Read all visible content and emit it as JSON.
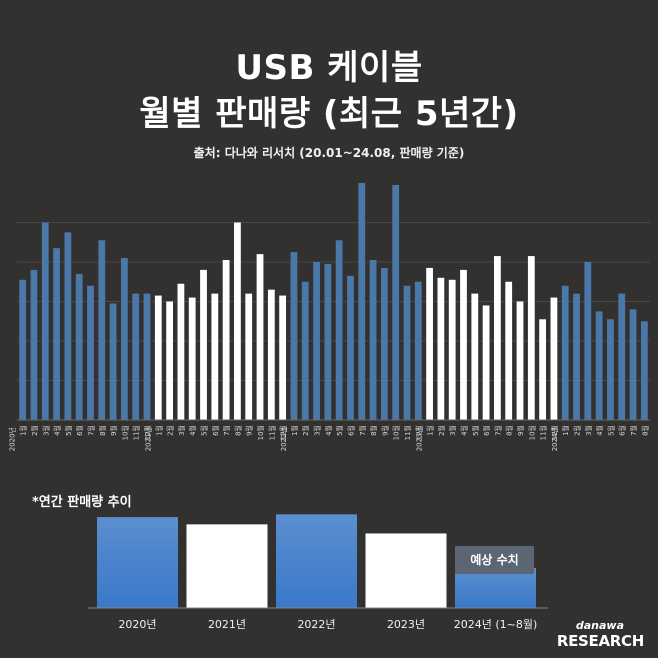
{
  "header": {
    "title_line1": "USB 케이블",
    "title_line2": "월별 판매량 (최근 5년간)",
    "source": "출처: 다나와 리서치 (20.01~24.08, 판매량 기준)"
  },
  "colors": {
    "background": "#333130",
    "blue": "#4a78a8",
    "white": "#ffffff",
    "gridline": "#4a4846",
    "forecast_badge": "#5a6673"
  },
  "chart_data": [
    {
      "type": "bar",
      "title": "USB 케이블 월별 판매량 (최근 5년간)",
      "xlabel": "",
      "ylabel": "",
      "ylim": [
        0,
        120
      ],
      "grid": true,
      "series": [
        {
          "name": "2020년",
          "year_label": "2020년",
          "color": "blue",
          "months": [
            "1월",
            "2월",
            "3월",
            "4월",
            "5월",
            "6월",
            "7월",
            "8월",
            "9월",
            "10월",
            "11월",
            "12월"
          ],
          "values": [
            71,
            76,
            100,
            87,
            95,
            74,
            68,
            91,
            59,
            82,
            64,
            64
          ]
        },
        {
          "name": "2021년",
          "year_label": "2021년",
          "color": "white",
          "months": [
            "1월",
            "2월",
            "3월",
            "4월",
            "5월",
            "6월",
            "7월",
            "8월",
            "9월",
            "10월",
            "11월",
            "12월"
          ],
          "values": [
            63,
            60,
            69,
            62,
            76,
            64,
            81,
            100,
            64,
            84,
            66,
            63
          ]
        },
        {
          "name": "2022년",
          "year_label": "2022년",
          "color": "blue",
          "months": [
            "1월",
            "2월",
            "3월",
            "4월",
            "5월",
            "6월",
            "7월",
            "8월",
            "9월",
            "10월",
            "11월",
            "12월"
          ],
          "values": [
            85,
            70,
            80,
            79,
            91,
            73,
            120,
            81,
            77,
            119,
            68,
            70
          ]
        },
        {
          "name": "2023년",
          "year_label": "2023년",
          "color": "white",
          "months": [
            "1월",
            "2월",
            "3월",
            "4월",
            "5월",
            "6월",
            "7월",
            "8월",
            "9월",
            "10월",
            "11월",
            "12월"
          ],
          "values": [
            77,
            72,
            71,
            76,
            64,
            58,
            83,
            70,
            60,
            83,
            51,
            62
          ]
        },
        {
          "name": "2024년",
          "year_label": "2024년",
          "color": "blue",
          "months": [
            "1월",
            "2월",
            "3월",
            "4월",
            "5월",
            "6월",
            "7월",
            "8월"
          ],
          "values": [
            68,
            64,
            80,
            55,
            51,
            64,
            56,
            50
          ]
        }
      ]
    },
    {
      "type": "bar",
      "title": "*연간 판매량 추이",
      "categories": [
        "2020년",
        "2021년",
        "2022년",
        "2023년",
        "2024년 (1~8월)"
      ],
      "values": [
        100,
        92,
        103,
        82,
        44
      ],
      "forecast_value": 82,
      "forecast_label": "예상 수치",
      "colors": [
        "blue",
        "white",
        "blue",
        "white",
        "blue"
      ],
      "ylim": [
        0,
        110
      ]
    }
  ],
  "annual_section": {
    "label": "*연간 판매량 추이",
    "forecast_label": "예상 수치"
  },
  "logo": {
    "small": "danawa",
    "big": "RESEARCH"
  }
}
